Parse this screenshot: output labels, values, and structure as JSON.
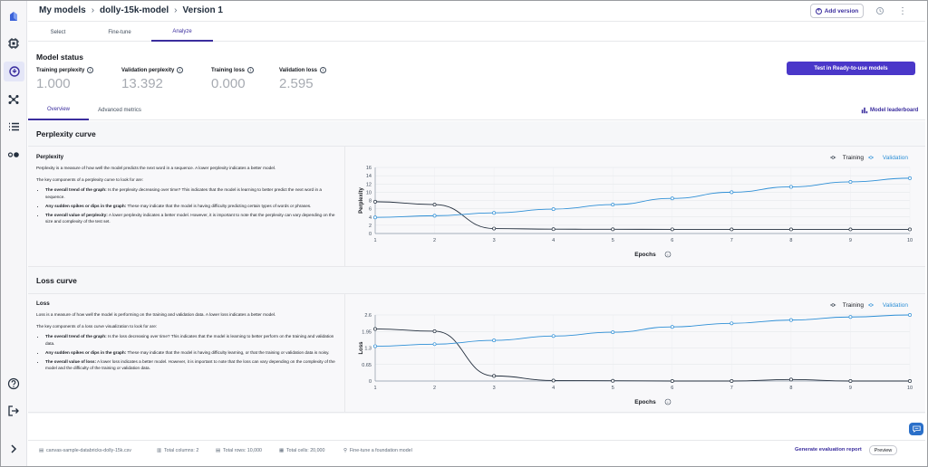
{
  "breadcrumb": {
    "items": [
      "My models",
      "dolly-15k-model",
      "Version 1"
    ]
  },
  "header": {
    "add_version_label": "Add version"
  },
  "tabs": [
    {
      "label": "Select"
    },
    {
      "label": "Fine-tune"
    },
    {
      "label": "Analyze"
    }
  ],
  "model_status": {
    "title": "Model status",
    "metrics": [
      {
        "label": "Training perplexity",
        "value": "1.000"
      },
      {
        "label": "Validation perplexity",
        "value": "13.392"
      },
      {
        "label": "Training loss",
        "value": "0.000"
      },
      {
        "label": "Validation loss",
        "value": "2.595"
      }
    ],
    "test_button": "Test in Ready-to-use models"
  },
  "subtabs": [
    {
      "label": "Overview"
    },
    {
      "label": "Advanced metrics"
    }
  ],
  "leaderboard_label": "Model leaderboard",
  "perplexity": {
    "section_title": "Perplexity curve",
    "heading": "Perplexity",
    "intro": "Perplexity is a measure of how well the model predicts the next word in a sequence. A lower perplexity indicates a better model.",
    "key_intro": "The key components of a perplexity curve to look for are:",
    "bullets": [
      {
        "bold": "The overall trend of the graph:",
        "text": " Is the perplexity decreasing over time? This indicates that the model is learning to better predict the next word in a sequence."
      },
      {
        "bold": "Any sudden spikes or dips in the graph:",
        "text": " These may indicate that the model is having difficulty predicting certain types of words or phrases."
      },
      {
        "bold": "The overall value of perplexity:",
        "text": " A lower perplexity indicates a better model. However, it is important to note that the perplexity can vary depending on the size and complexity of the test set."
      }
    ]
  },
  "loss": {
    "section_title": "Loss curve",
    "heading": "Loss",
    "intro": "Loss is a measure of how well the model is performing on the training and validation data. A lower loss indicates a better model.",
    "key_intro": "The key components of a loss curve visualization to look for are:",
    "bullets": [
      {
        "bold": "The overall trend of the graph:",
        "text": " Is the loss decreasing over time? This indicates that the model is learning to better perform on the training and validation data."
      },
      {
        "bold": "Any sudden spikes or dips in the graph:",
        "text": " These may indicate that the model is having difficulty learning, or that the training or validation data is noisy."
      },
      {
        "bold": "The overall value of loss:",
        "text": " A lower loss indicates a better model. However, it is important to note that the loss can vary depending on the complexity of the model and the difficulty of the training or validation data."
      }
    ]
  },
  "chart_data": [
    {
      "type": "line",
      "ylabel": "Perplexity",
      "xlabel": "Epochs",
      "x": [
        1,
        2,
        3,
        4,
        5,
        6,
        7,
        8,
        9,
        10
      ],
      "ylim": [
        0,
        16
      ],
      "yticks": [
        0,
        2,
        4,
        6,
        8,
        10,
        12,
        14,
        16
      ],
      "grid": true,
      "legend": "top-right",
      "series": [
        {
          "name": "Training",
          "color": "#232f3e",
          "values": [
            7.7,
            7.0,
            1.2,
            1.05,
            1.02,
            1.01,
            1.0,
            1.0,
            1.0,
            1.0
          ]
        },
        {
          "name": "Validation",
          "color": "#2e8fd6",
          "values": [
            3.9,
            4.3,
            5.0,
            5.9,
            7.0,
            8.5,
            10.0,
            11.3,
            12.5,
            13.4
          ]
        }
      ]
    },
    {
      "type": "line",
      "ylabel": "Loss",
      "xlabel": "Epochs",
      "x": [
        1,
        2,
        3,
        4,
        5,
        6,
        7,
        8,
        9,
        10
      ],
      "ylim": [
        0,
        2.6
      ],
      "yticks": [
        0,
        0.65,
        1.3,
        1.95,
        2.6
      ],
      "ytick_labels": [
        "0",
        "0.65",
        "1.3",
        "1.95",
        "2.6"
      ],
      "grid": true,
      "legend": "top-right",
      "series": [
        {
          "name": "Training",
          "color": "#232f3e",
          "values": [
            2.05,
            1.96,
            0.2,
            0.02,
            0.01,
            0.0,
            0.0,
            0.06,
            0.0,
            0.0
          ]
        },
        {
          "name": "Validation",
          "color": "#2e8fd6",
          "values": [
            1.37,
            1.45,
            1.6,
            1.77,
            1.92,
            2.13,
            2.27,
            2.4,
            2.52,
            2.6
          ]
        }
      ]
    }
  ],
  "footer": {
    "dataset": "canvas-sample-databricks-dolly-15k.csv",
    "columns": "Total columns: 2",
    "rows": "Total rows: 10,000",
    "cells": "Total cells: 20,000",
    "task": "Fine-tune a foundation model",
    "generate_report": "Generate evaluation report",
    "preview": "Preview"
  }
}
